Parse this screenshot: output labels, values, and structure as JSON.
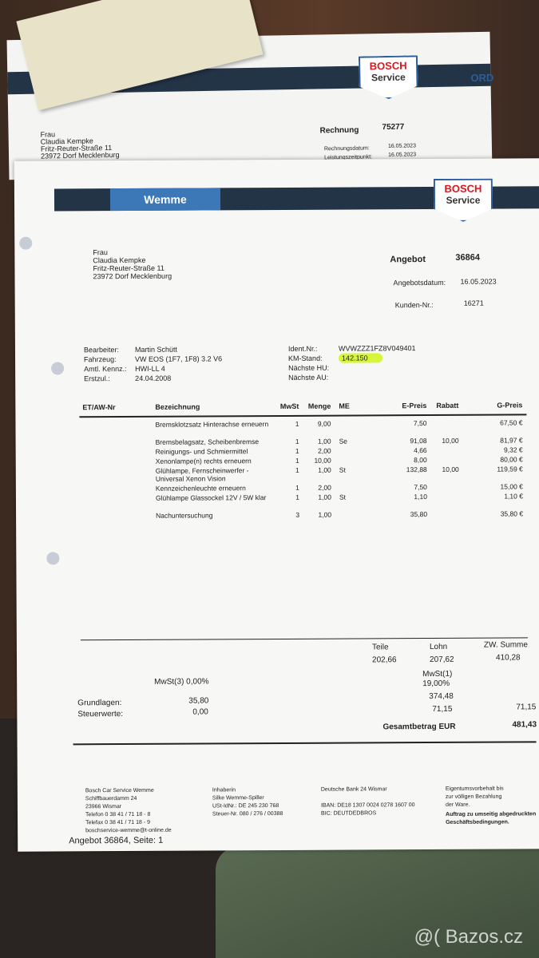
{
  "back_document": {
    "title": "Rechnung",
    "number": "75277",
    "recipient": [
      "Frau",
      "Claudia Kempke",
      "Fritz-Reuter-Straße 11",
      "23972 Dorf Mecklenburg"
    ],
    "date_label": "Rechnungsdatum:",
    "date": "16.05.2023",
    "service_label": "Leistungszeitpunkt:",
    "service_date": "16.05.2023",
    "logo": [
      "BOSCH",
      "Service"
    ],
    "side_logo": "ORD"
  },
  "header": {
    "branch": "Wemme",
    "logo": [
      "BOSCH",
      "Service"
    ]
  },
  "recipient": [
    "Frau",
    "Claudia Kempke",
    "Fritz-Reuter-Straße 11",
    "23972 Dorf Mecklenburg"
  ],
  "offer": {
    "title": "Angebot",
    "number": "36864",
    "date_label": "Angebotsdatum:",
    "date": "16.05.2023",
    "customer_label": "Kunden-Nr.:",
    "customer": "16271"
  },
  "vehicle": {
    "left": [
      [
        "Bearbeiter:",
        "Martin Schütt"
      ],
      [
        "Fahrzeug:",
        "VW EOS (1F7, 1F8) 3.2 V6"
      ],
      [
        "Amtl. Kennz.:",
        "HWI-LL 4"
      ],
      [
        "Erstzul.:",
        "24.04.2008"
      ]
    ],
    "right": [
      [
        "Ident.Nr.:",
        "WVWZZZ1FZ8V049401"
      ],
      [
        "KM-Stand:",
        "142.150"
      ],
      [
        "Nächste HU:",
        ""
      ],
      [
        "Nächste AU:",
        ""
      ]
    ],
    "highlight_color": "#d9f53a"
  },
  "table": {
    "headers": [
      "ET/AW-Nr",
      "Bezeichnung",
      "MwSt",
      "Menge",
      "ME",
      "E-Preis",
      "Rabatt",
      "G-Preis"
    ],
    "rows": [
      [
        "",
        "Bremsklotzsatz Hinterachse erneuern",
        "1",
        "9,00",
        "",
        "7,50",
        "",
        "67,50 €"
      ],
      [
        "",
        "Bremsbelagsatz, Scheibenbremse",
        "1",
        "1,00",
        "Se",
        "91,08",
        "10,00",
        "81,97 €"
      ],
      [
        "",
        "Reinigungs- und Schmiermittel",
        "1",
        "2,00",
        "",
        "4,66",
        "",
        "9,32 €"
      ],
      [
        "",
        "Xenonlampe(n) rechts erneuern",
        "1",
        "10,00",
        "",
        "8,00",
        "",
        "80,00 €"
      ],
      [
        "",
        "Glühlampe, Fernscheinwerfer - Universal Xenon Vision",
        "1",
        "1,00",
        "St",
        "132,88",
        "10,00",
        "119,59 €"
      ],
      [
        "",
        "Kennzeichenleuchte erneuern",
        "1",
        "2,00",
        "",
        "7,50",
        "",
        "15,00 €"
      ],
      [
        "",
        "Glühlampe Glassockel 12V / 5W klar",
        "1",
        "1,00",
        "St",
        "1,10",
        "",
        "1,10 €"
      ],
      [
        "",
        "Nachuntersuchung",
        "3",
        "1,00",
        "",
        "35,80",
        "",
        "35,80 €"
      ]
    ]
  },
  "totals": {
    "teile_label": "Teile",
    "teile": "202,66",
    "lohn_label": "Lohn",
    "lohn": "207,62",
    "zw_label": "ZW. Summe",
    "zw": "410,28",
    "mwst3": "MwSt(3) 0,00%",
    "mwst1": "MwSt(1)",
    "mwst1_rate": "19,00%",
    "grund_label": "Grundlagen:",
    "grund3": "35,80",
    "grund1": "374,48",
    "steuer_label": "Steuerwerte:",
    "steuer3": "0,00",
    "steuer1": "71,15",
    "steuer_total": "71,15",
    "total_label": "Gesamtbetrag EUR",
    "total": "481,43"
  },
  "footer": {
    "col1": [
      "Bosch Car Service Wemme",
      "Schiffbauerdamm 24",
      "23966 Wismar",
      "Telefon 0 38 41 / 71 18 - 8",
      "Telefax 0 38 41 / 71 18 - 9",
      "boschservice-wemme@t-online.de"
    ],
    "col2": [
      "Inhaberin",
      "Silke Wemme-Spiller",
      "USt-IdNr.: DE 245 230 768",
      "Steuer-Nr. 080 / 276 / 00388"
    ],
    "col3": [
      "Deutsche Bank 24 Wismar",
      "IBAN: DE18 1307 0024 0278 1607 00",
      "BIC: DEUTDEDBROS"
    ],
    "col4": [
      "Eigentumsvorbehalt bis",
      "zur völligen Bezahlung",
      "der Ware."
    ],
    "col4_bold": [
      "Auftrag zu umseitig abgedruckten",
      "Geschäftsbedingungen."
    ],
    "page": "Angebot 36864, Seite: 1"
  },
  "watermark": "@( Bazos.cz"
}
